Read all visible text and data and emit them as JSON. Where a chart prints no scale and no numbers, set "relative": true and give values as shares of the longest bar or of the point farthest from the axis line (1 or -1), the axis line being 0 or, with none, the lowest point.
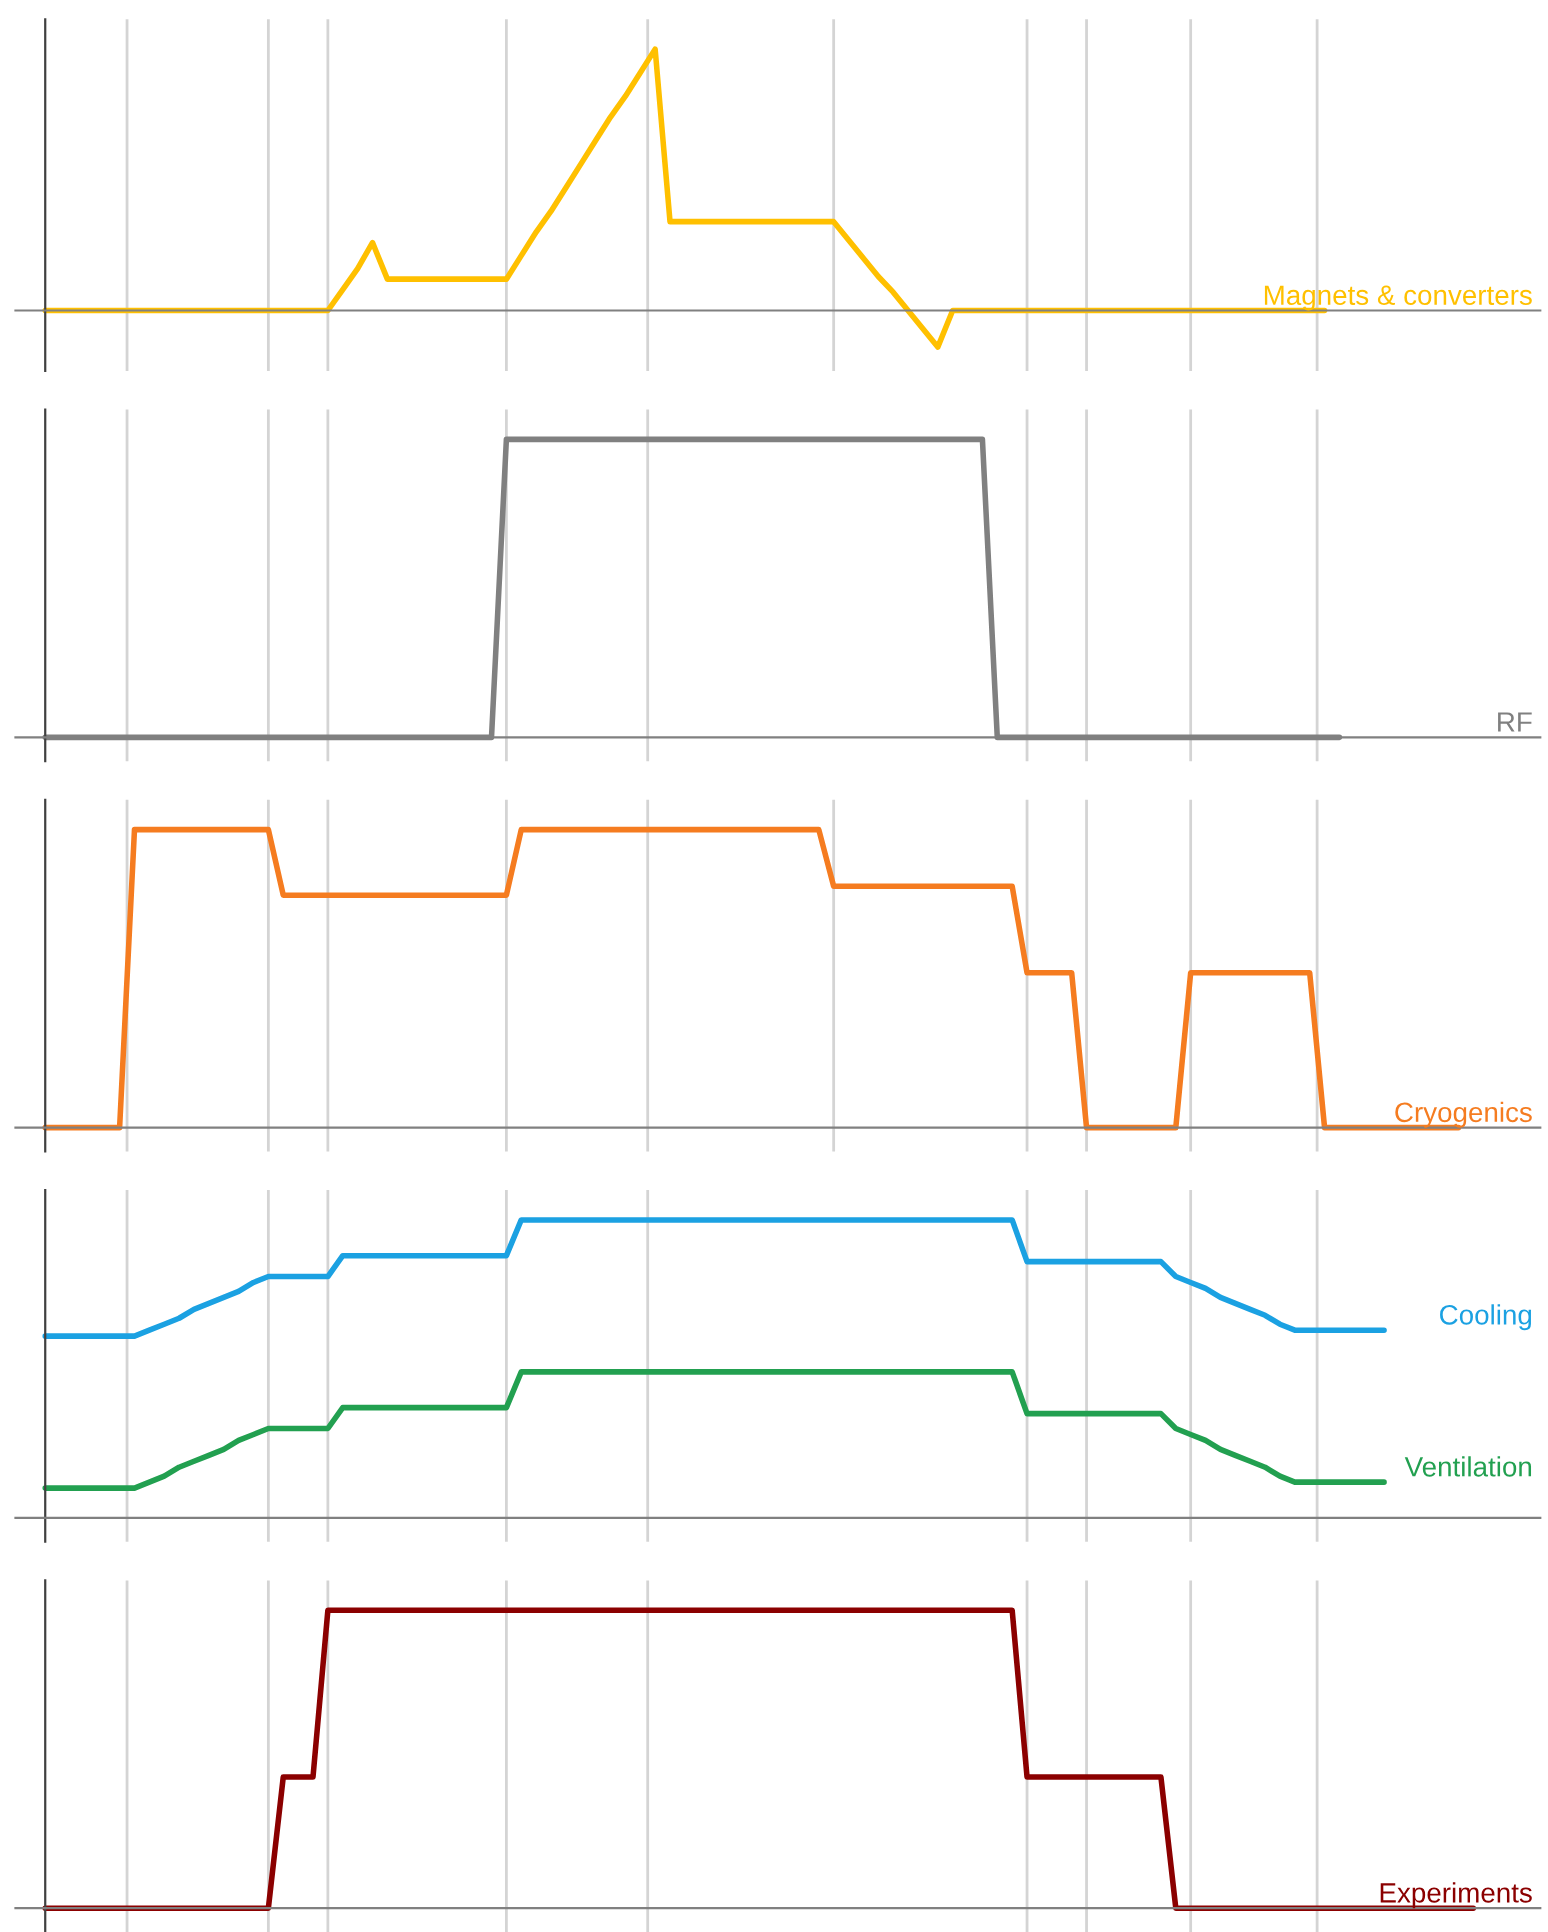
{
  "chart_data": [
    {
      "type": "line",
      "relative": true,
      "categories": [
        null,
        null,
        null,
        null,
        null,
        null,
        null,
        null,
        null,
        null,
        null,
        null,
        null,
        null,
        null,
        null,
        null,
        null,
        null,
        null,
        null,
        null,
        null,
        null,
        null,
        null,
        null,
        null,
        null,
        null,
        null,
        null,
        null,
        null,
        null,
        null,
        null,
        null,
        null,
        null,
        null,
        null,
        null,
        null,
        null,
        null,
        null,
        null,
        null,
        null,
        null,
        null,
        null,
        null,
        null,
        null,
        null,
        null,
        null,
        null,
        null,
        null,
        null,
        null,
        null,
        null,
        null,
        null,
        null,
        null,
        null,
        null,
        null,
        null,
        null,
        null,
        null,
        null,
        null,
        null,
        null,
        null,
        null,
        null,
        null,
        null,
        null,
        null,
        null,
        null,
        null,
        null,
        null,
        null,
        null,
        null,
        null,
        null,
        null,
        null,
        null
      ],
      "grid": "x",
      "series": [
        {
          "name": "Magnets & converters",
          "color": "#ffc000",
          "values": [
            0,
            0,
            0,
            0,
            0,
            0,
            0,
            0,
            0,
            0,
            0,
            0,
            0,
            0,
            0,
            0,
            0,
            0,
            0,
            0,
            0.08,
            0.16,
            0.26,
            0.12,
            0.12,
            0.12,
            0.12,
            0.12,
            0.12,
            0.12,
            0.12,
            0.12,
            0.21,
            0.3,
            0.38,
            0.47,
            0.56,
            0.65,
            0.74,
            0.82,
            0.91,
            1,
            0.34,
            0.34,
            0.34,
            0.34,
            0.34,
            0.34,
            0.34,
            0.34,
            0.34,
            0.34,
            0.34,
            0.34,
            0.27,
            0.2,
            0.13,
            0.07,
            0,
            -0.07,
            -0.14,
            0,
            0,
            0,
            0,
            0,
            0,
            0,
            0,
            0,
            0,
            0,
            0,
            0,
            0,
            0,
            0,
            0,
            0,
            0,
            0,
            0,
            0,
            0,
            0,
            0,
            0,
            null,
            null,
            null,
            null,
            null,
            null,
            null,
            null,
            null,
            null,
            null,
            null,
            null,
            null
          ]
        }
      ]
    },
    {
      "type": "line",
      "relative": true,
      "categories": [
        null,
        null,
        null,
        null,
        null,
        null,
        null,
        null,
        null,
        null,
        null,
        null,
        null,
        null,
        null,
        null,
        null,
        null,
        null,
        null,
        null,
        null,
        null,
        null,
        null,
        null,
        null,
        null,
        null,
        null,
        null,
        null,
        null,
        null,
        null,
        null,
        null,
        null,
        null,
        null,
        null,
        null,
        null,
        null,
        null,
        null,
        null,
        null,
        null,
        null,
        null,
        null,
        null,
        null,
        null,
        null,
        null,
        null,
        null,
        null,
        null,
        null,
        null,
        null,
        null,
        null,
        null,
        null,
        null,
        null,
        null,
        null,
        null,
        null,
        null,
        null,
        null,
        null,
        null,
        null,
        null,
        null,
        null,
        null,
        null,
        null,
        null,
        null,
        null,
        null,
        null,
        null,
        null,
        null,
        null,
        null,
        null,
        null,
        null,
        null,
        null
      ],
      "grid": "x",
      "series": [
        {
          "name": "RF",
          "color": "#808080",
          "values": [
            0,
            0,
            0,
            0,
            0,
            0,
            0,
            0,
            0,
            0,
            0,
            0,
            0,
            0,
            0,
            0,
            0,
            0,
            0,
            0,
            0,
            0,
            0,
            0,
            0,
            0,
            0,
            0,
            0,
            0,
            0,
            1,
            1,
            1,
            1,
            1,
            1,
            1,
            1,
            1,
            1,
            1,
            1,
            1,
            1,
            1,
            1,
            1,
            1,
            1,
            1,
            1,
            1,
            1,
            1,
            1,
            1,
            1,
            1,
            1,
            1,
            1,
            1,
            1,
            0,
            0,
            0,
            0,
            0,
            0,
            0,
            0,
            0,
            0,
            0,
            0,
            0,
            0,
            0,
            0,
            0,
            0,
            0,
            0,
            0,
            0,
            0,
            0,
            null,
            null,
            null,
            null,
            null,
            null,
            null,
            null,
            null,
            null,
            null,
            null,
            null
          ]
        }
      ]
    },
    {
      "type": "line",
      "relative": true,
      "categories": [
        null,
        null,
        null,
        null,
        null,
        null,
        null,
        null,
        null,
        null,
        null,
        null,
        null,
        null,
        null,
        null,
        null,
        null,
        null,
        null,
        null,
        null,
        null,
        null,
        null,
        null,
        null,
        null,
        null,
        null,
        null,
        null,
        null,
        null,
        null,
        null,
        null,
        null,
        null,
        null,
        null,
        null,
        null,
        null,
        null,
        null,
        null,
        null,
        null,
        null,
        null,
        null,
        null,
        null,
        null,
        null,
        null,
        null,
        null,
        null,
        null,
        null,
        null,
        null,
        null,
        null,
        null,
        null,
        null,
        null,
        null,
        null,
        null,
        null,
        null,
        null,
        null,
        null,
        null,
        null,
        null,
        null,
        null,
        null,
        null,
        null,
        null,
        null,
        null,
        null,
        null,
        null,
        null,
        null,
        null,
        null,
        null,
        null,
        null,
        null,
        null
      ],
      "grid": "x",
      "series": [
        {
          "name": "Cryogenics",
          "color": "#f57c20",
          "values": [
            0,
            0,
            0,
            0,
            0,
            0,
            1,
            1,
            1,
            1,
            1,
            1,
            1,
            1,
            1,
            1,
            0.78,
            0.78,
            0.78,
            0.78,
            0.78,
            0.78,
            0.78,
            0.78,
            0.78,
            0.78,
            0.78,
            0.78,
            0.78,
            0.78,
            0.78,
            0.78,
            1,
            1,
            1,
            1,
            1,
            1,
            1,
            1,
            1,
            1,
            1,
            1,
            1,
            1,
            1,
            1,
            1,
            1,
            1,
            1,
            1,
            0.81,
            0.81,
            0.81,
            0.81,
            0.81,
            0.81,
            0.81,
            0.81,
            0.81,
            0.81,
            0.81,
            0.81,
            0.81,
            0.52,
            0.52,
            0.52,
            0.52,
            0,
            0,
            0,
            0,
            0,
            0,
            0,
            0.52,
            0.52,
            0.52,
            0.52,
            0.52,
            0.52,
            0.52,
            0.52,
            0.52,
            0,
            0,
            0,
            0,
            0,
            0,
            0,
            0,
            0,
            0,
            null,
            null,
            null,
            null,
            null
          ]
        }
      ]
    },
    {
      "type": "line",
      "relative": true,
      "categories": [
        null,
        null,
        null,
        null,
        null,
        null,
        null,
        null,
        null,
        null,
        null,
        null,
        null,
        null,
        null,
        null,
        null,
        null,
        null,
        null,
        null,
        null,
        null,
        null,
        null,
        null,
        null,
        null,
        null,
        null,
        null,
        null,
        null,
        null,
        null,
        null,
        null,
        null,
        null,
        null,
        null,
        null,
        null,
        null,
        null,
        null,
        null,
        null,
        null,
        null,
        null,
        null,
        null,
        null,
        null,
        null,
        null,
        null,
        null,
        null,
        null,
        null,
        null,
        null,
        null,
        null,
        null,
        null,
        null,
        null,
        null,
        null,
        null,
        null,
        null,
        null,
        null,
        null,
        null,
        null,
        null,
        null,
        null,
        null,
        null,
        null,
        null,
        null,
        null,
        null,
        null,
        null,
        null,
        null,
        null,
        null,
        null,
        null,
        null,
        null,
        null
      ],
      "grid": "x",
      "series": [
        {
          "name": "Cooling",
          "color": "#1ba1e2",
          "values": [
            0.61,
            0.61,
            0.61,
            0.61,
            0.61,
            0.61,
            0.61,
            0.63,
            0.65,
            0.67,
            0.7,
            0.72,
            0.74,
            0.76,
            0.79,
            0.81,
            0.81,
            0.81,
            0.81,
            0.81,
            0.88,
            0.88,
            0.88,
            0.88,
            0.88,
            0.88,
            0.88,
            0.88,
            0.88,
            0.88,
            0.88,
            0.88,
            1,
            1,
            1,
            1,
            1,
            1,
            1,
            1,
            1,
            1,
            1,
            1,
            1,
            1,
            1,
            1,
            1,
            1,
            1,
            1,
            1,
            1,
            1,
            1,
            1,
            1,
            1,
            1,
            1,
            1,
            1,
            1,
            1,
            1,
            0.86,
            0.86,
            0.86,
            0.86,
            0.86,
            0.86,
            0.86,
            0.86,
            0.86,
            0.86,
            0.81,
            0.79,
            0.77,
            0.74,
            0.72,
            0.7,
            0.68,
            0.65,
            0.63,
            0.63,
            0.63,
            0.63,
            0.63,
            0.63,
            0.63,
            null,
            null,
            null,
            null,
            null,
            null,
            null,
            null,
            null,
            null
          ]
        },
        {
          "name": "Ventilation",
          "color": "#22a050",
          "values": [
            0.1,
            0.1,
            0.1,
            0.1,
            0.1,
            0.1,
            0.1,
            0.12,
            0.14,
            0.17,
            0.19,
            0.21,
            0.23,
            0.26,
            0.28,
            0.3,
            0.3,
            0.3,
            0.3,
            0.3,
            0.37,
            0.37,
            0.37,
            0.37,
            0.37,
            0.37,
            0.37,
            0.37,
            0.37,
            0.37,
            0.37,
            0.37,
            0.49,
            0.49,
            0.49,
            0.49,
            0.49,
            0.49,
            0.49,
            0.49,
            0.49,
            0.49,
            0.49,
            0.49,
            0.49,
            0.49,
            0.49,
            0.49,
            0.49,
            0.49,
            0.49,
            0.49,
            0.49,
            0.49,
            0.49,
            0.49,
            0.49,
            0.49,
            0.49,
            0.49,
            0.49,
            0.49,
            0.49,
            0.49,
            0.49,
            0.49,
            0.35,
            0.35,
            0.35,
            0.35,
            0.35,
            0.35,
            0.35,
            0.35,
            0.35,
            0.35,
            0.3,
            0.28,
            0.26,
            0.23,
            0.21,
            0.19,
            0.17,
            0.14,
            0.12,
            0.12,
            0.12,
            0.12,
            0.12,
            0.12,
            0.12,
            null,
            null,
            null,
            null,
            null,
            null,
            null,
            null,
            null,
            null
          ]
        }
      ]
    },
    {
      "type": "line",
      "relative": true,
      "categories": [
        null,
        null,
        null,
        null,
        null,
        null,
        null,
        null,
        null,
        null,
        null,
        null,
        null,
        null,
        null,
        null,
        null,
        null,
        null,
        null,
        null,
        null,
        null,
        null,
        null,
        null,
        null,
        null,
        null,
        null,
        null,
        null,
        null,
        null,
        null,
        null,
        null,
        null,
        null,
        null,
        null,
        null,
        null,
        null,
        null,
        null,
        null,
        null,
        null,
        null,
        null,
        null,
        null,
        null,
        null,
        null,
        null,
        null,
        null,
        null,
        null,
        null,
        null,
        null,
        null,
        null,
        null,
        null,
        null,
        null,
        null,
        null,
        null,
        null,
        null,
        null,
        null,
        null,
        null,
        null,
        null,
        null,
        null,
        null,
        null,
        null,
        null,
        null,
        null,
        null,
        null,
        null,
        null,
        null,
        null,
        null,
        null,
        null,
        null,
        null,
        null
      ],
      "grid": "x",
      "series": [
        {
          "name": "Experiments",
          "color": "#8b0000",
          "values": [
            0,
            0,
            0,
            0,
            0,
            0,
            0,
            0,
            0,
            0,
            0,
            0,
            0,
            0,
            0,
            0,
            0.44,
            0.44,
            0.44,
            1,
            1,
            1,
            1,
            1,
            1,
            1,
            1,
            1,
            1,
            1,
            1,
            1,
            1,
            1,
            1,
            1,
            1,
            1,
            1,
            1,
            1,
            1,
            1,
            1,
            1,
            1,
            1,
            1,
            1,
            1,
            1,
            1,
            1,
            1,
            1,
            1,
            1,
            1,
            1,
            1,
            1,
            1,
            1,
            1,
            1,
            1,
            0.44,
            0.44,
            0.44,
            0.44,
            0.44,
            0.44,
            0.44,
            0.44,
            0.44,
            0.44,
            0,
            0,
            0,
            0,
            0,
            0,
            0,
            0,
            0,
            0,
            0,
            0,
            0,
            0,
            0,
            0,
            0,
            0,
            0,
            0,
            0,
            null,
            null,
            null,
            null
          ]
        }
      ]
    }
  ]
}
